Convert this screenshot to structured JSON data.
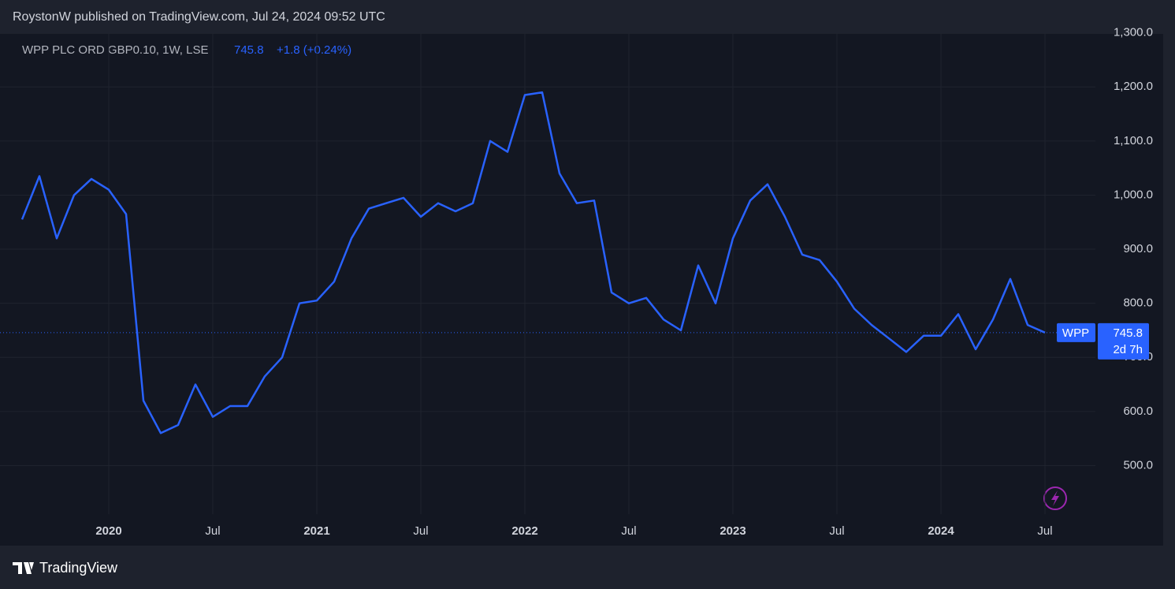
{
  "publisher_line": "RoystonW published on TradingView.com, Jul 24, 2024 09:52 UTC",
  "brand": "TradingView",
  "chart_data": {
    "type": "line",
    "symbol": "WPP PLC ORD GBP0.10, 1W, LSE",
    "last_price": 745.8,
    "change": "+1.8 (+0.24%)",
    "series_label": "WPP",
    "countdown": "2d 7h",
    "color": "#2962ff",
    "grid": true,
    "x": [
      "2019-08",
      "2019-09",
      "2019-10",
      "2019-11",
      "2019-12",
      "2020-01",
      "2020-02",
      "2020-03",
      "2020-04",
      "2020-05",
      "2020-06",
      "2020-07",
      "2020-08",
      "2020-09",
      "2020-10",
      "2020-11",
      "2020-12",
      "2021-01",
      "2021-02",
      "2021-03",
      "2021-04",
      "2021-05",
      "2021-06",
      "2021-07",
      "2021-08",
      "2021-09",
      "2021-10",
      "2021-11",
      "2021-12",
      "2022-01",
      "2022-02",
      "2022-03",
      "2022-04",
      "2022-05",
      "2022-06",
      "2022-07",
      "2022-08",
      "2022-09",
      "2022-10",
      "2022-11",
      "2022-12",
      "2023-01",
      "2023-02",
      "2023-03",
      "2023-04",
      "2023-05",
      "2023-06",
      "2023-07",
      "2023-08",
      "2023-09",
      "2023-10",
      "2023-11",
      "2023-12",
      "2024-01",
      "2024-02",
      "2024-03",
      "2024-04",
      "2024-05",
      "2024-06",
      "2024-07"
    ],
    "values": [
      955,
      1035,
      920,
      1000,
      1030,
      1010,
      965,
      620,
      560,
      575,
      650,
      590,
      610,
      610,
      665,
      700,
      800,
      805,
      840,
      920,
      975,
      985,
      995,
      960,
      985,
      970,
      985,
      1100,
      1080,
      1185,
      1190,
      1040,
      985,
      990,
      820,
      800,
      810,
      770,
      750,
      870,
      800,
      920,
      990,
      1020,
      960,
      890,
      880,
      840,
      790,
      760,
      735,
      710,
      740,
      740,
      780,
      715,
      770,
      845,
      760,
      745.8
    ],
    "xlim": [
      "2019-06",
      "2024-09"
    ],
    "xticks": [
      {
        "value": "2020-01",
        "label": "2020"
      },
      {
        "value": "2020-07",
        "label": "Jul"
      },
      {
        "value": "2021-01",
        "label": "2021"
      },
      {
        "value": "2021-07",
        "label": "Jul"
      },
      {
        "value": "2022-01",
        "label": "2022"
      },
      {
        "value": "2022-07",
        "label": "Jul"
      },
      {
        "value": "2023-01",
        "label": "2023"
      },
      {
        "value": "2023-07",
        "label": "Jul"
      },
      {
        "value": "2024-01",
        "label": "2024"
      },
      {
        "value": "2024-07",
        "label": "Jul"
      }
    ],
    "ylim": [
      352,
      1298
    ],
    "yticks": [
      {
        "value": 500,
        "label": "500.0"
      },
      {
        "value": 600,
        "label": "600.0"
      },
      {
        "value": 700,
        "label": "700.0"
      },
      {
        "value": 800,
        "label": "800.0"
      },
      {
        "value": 900,
        "label": "900.0"
      },
      {
        "value": 1000,
        "label": "1,000.0"
      },
      {
        "value": 1100,
        "label": "1,100.0"
      },
      {
        "value": 1200,
        "label": "1,200.0"
      },
      {
        "value": 1300,
        "label": "1,300.0"
      }
    ]
  }
}
